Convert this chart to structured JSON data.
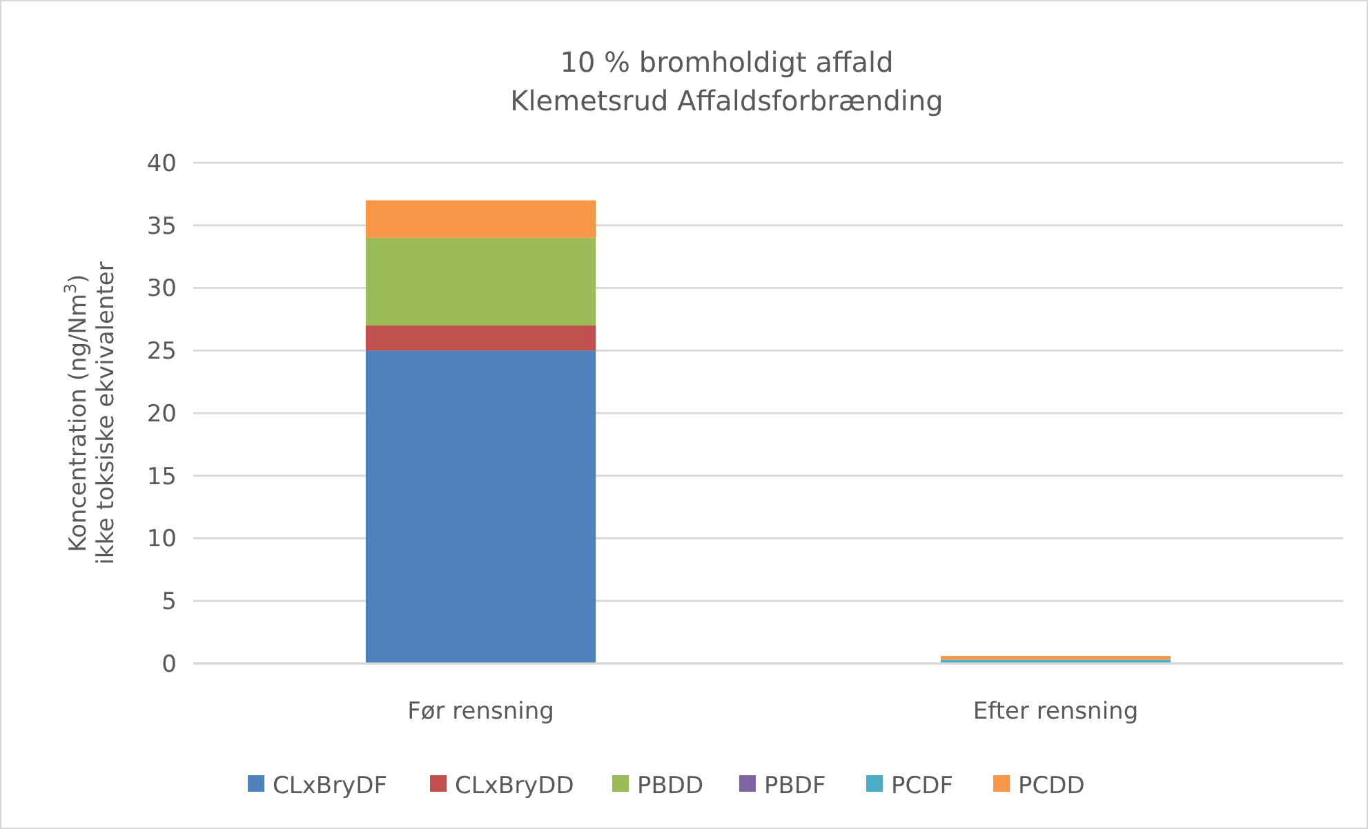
{
  "chart_data": {
    "type": "bar",
    "title": "10 % bromholdigt affald\nKlemetsrud Affaldsforbrænding",
    "ylabel": "Koncentration (ng/Nm$^{3}$)\nikke toksiske ekvivalenter",
    "categories": [
      "Før rensning",
      "Efter rensning"
    ],
    "stacked": true,
    "series": [
      {
        "name": "CLxBryDF",
        "color": "#4f81bd",
        "values": [
          25,
          0
        ]
      },
      {
        "name": "CLxBryDD",
        "color": "#c0504d",
        "values": [
          2,
          0
        ]
      },
      {
        "name": "PBDD",
        "color": "#9bbb59",
        "values": [
          7,
          0
        ]
      },
      {
        "name": "PBDF",
        "color": "#8064a2",
        "values": [
          0,
          0
        ]
      },
      {
        "name": "PCDF",
        "color": "#4bacc6",
        "values": [
          0,
          0.3
        ]
      },
      {
        "name": "PCDD",
        "color": "#f79646",
        "values": [
          3,
          0.3
        ]
      }
    ],
    "ylim": [
      0,
      40
    ],
    "yticks": [
      0,
      5,
      10,
      15,
      20,
      25,
      30,
      35,
      40
    ],
    "grid": "y",
    "legend": "bottom"
  }
}
